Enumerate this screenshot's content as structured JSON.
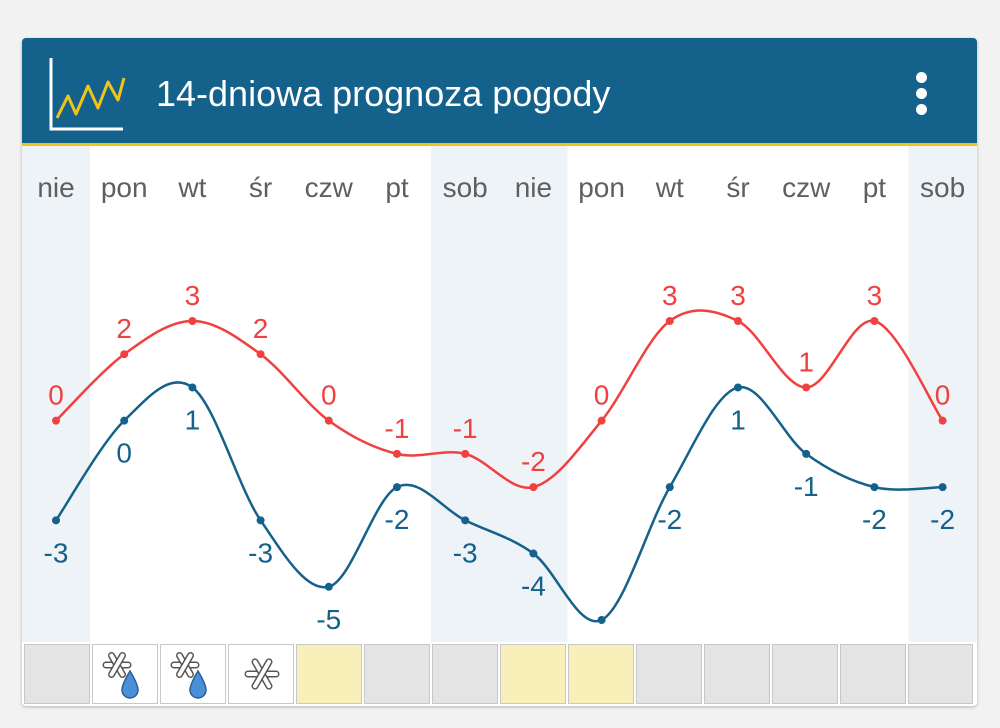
{
  "header": {
    "title": "14-dniowa prognoza pogody",
    "menu_icon": "more-vert-icon",
    "chart_icon": "line-chart-icon"
  },
  "colors": {
    "header_bg": "#14618c",
    "accent": "#f0c419",
    "max_line": "#f04040",
    "min_line": "#14618c",
    "weekend_bg": "#eef3f7",
    "cell_gray": "#e4e4e4",
    "cell_yellow": "#f8f0b8"
  },
  "chart_data": {
    "type": "line",
    "categories": [
      "nie",
      "pon",
      "wt",
      "śr",
      "czw",
      "pt",
      "sob",
      "nie",
      "pon",
      "wt",
      "śr",
      "czw",
      "pt",
      "sob"
    ],
    "weekend": [
      true,
      false,
      false,
      false,
      false,
      false,
      true,
      true,
      false,
      false,
      false,
      false,
      false,
      true
    ],
    "series": [
      {
        "values": [
          0,
          2,
          3,
          2,
          0,
          -1,
          -1,
          -2,
          0,
          3,
          3,
          1,
          3,
          0
        ]
      },
      {
        "values": [
          -3,
          0,
          1,
          -3,
          -5,
          -2,
          -3,
          -4,
          -6,
          -2,
          1,
          -1,
          -2,
          -2
        ]
      }
    ],
    "ylim": [
      -6,
      3
    ],
    "grid": false
  },
  "weather_icons": [
    {
      "condition": "none",
      "icon": ""
    },
    {
      "condition": "snow-rain",
      "icon": "snow-rain-icon"
    },
    {
      "condition": "snow-rain",
      "icon": "snow-rain-icon"
    },
    {
      "condition": "snow",
      "icon": "snowflake-icon"
    },
    {
      "condition": "sun",
      "icon": ""
    },
    {
      "condition": "none",
      "icon": ""
    },
    {
      "condition": "none",
      "icon": ""
    },
    {
      "condition": "sun",
      "icon": ""
    },
    {
      "condition": "sun",
      "icon": ""
    },
    {
      "condition": "none",
      "icon": ""
    },
    {
      "condition": "none",
      "icon": ""
    },
    {
      "condition": "none",
      "icon": ""
    },
    {
      "condition": "none",
      "icon": ""
    },
    {
      "condition": "none",
      "icon": ""
    }
  ]
}
